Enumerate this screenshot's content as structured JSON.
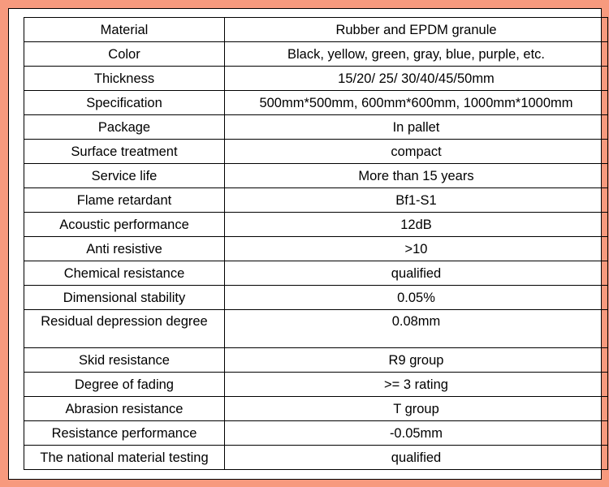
{
  "table": {
    "rows": [
      {
        "label": "Material",
        "value": "Rubber and EPDM granule"
      },
      {
        "label": "Color",
        "value": "Black, yellow, green, gray, blue, purple, etc."
      },
      {
        "label": "Thickness",
        "value": "15/20/ 25/ 30/40/45/50mm"
      },
      {
        "label": "Specification",
        "value": "500mm*500mm, 600mm*600mm, 1000mm*1000mm"
      },
      {
        "label": "Package",
        "value": "In pallet"
      },
      {
        "label": "Surface treatment",
        "value": "compact"
      },
      {
        "label": "Service life",
        "value": "More than 15 years"
      },
      {
        "label": "Flame retardant",
        "value": "Bf1-S1"
      },
      {
        "label": "Acoustic performance",
        "value": "12dB"
      },
      {
        "label": "Anti resistive",
        "value": ">10"
      },
      {
        "label": "Chemical resistance",
        "value": "qualified"
      },
      {
        "label": "Dimensional stability",
        "value": "0.05%"
      },
      {
        "label": "Residual depression degree",
        "value": "0.08mm"
      },
      {
        "label": "Skid resistance",
        "value": "R9 group"
      },
      {
        "label": "Degree of fading",
        "value": ">= 3 rating"
      },
      {
        "label": "Abrasion resistance",
        "value": "T group"
      },
      {
        "label": "Resistance performance",
        "value": "-0.05mm"
      },
      {
        "label": "The national material testing",
        "value": "qualified"
      }
    ]
  },
  "colors": {
    "page_background": "#f79a7e",
    "sheet_background": "#ffffff",
    "border": "#000000"
  }
}
